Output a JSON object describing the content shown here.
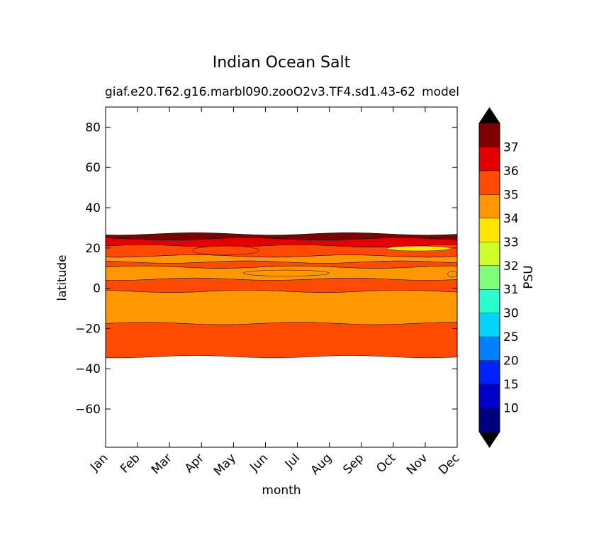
{
  "chart_data": {
    "type": "heatmap",
    "title": "Indian Ocean Salt",
    "subtitle_left": "giaf.e20.T62.g16.marbl090.zooO2v3.TF4.sd1.43-62",
    "subtitle_right": "model",
    "xlabel": "month",
    "ylabel": "latitude",
    "x_categories": [
      "Jan",
      "Feb",
      "Mar",
      "Apr",
      "May",
      "Jun",
      "Jul",
      "Aug",
      "Sep",
      "Oct",
      "Nov",
      "Dec"
    ],
    "ylim": [
      -79,
      90
    ],
    "y_ticks": [
      80,
      60,
      40,
      20,
      0,
      -20,
      -40,
      -60
    ],
    "colorbar": {
      "label": "PSU",
      "extend": "both",
      "levels": [
        10,
        15,
        20,
        25,
        30,
        31,
        32,
        33,
        34,
        35,
        36,
        37
      ],
      "colors": [
        "#00007f",
        "#0000cd",
        "#0022ff",
        "#0080ff",
        "#00d4ff",
        "#29ffce",
        "#7dff7a",
        "#ceff29",
        "#ffe600",
        "#ff9800",
        "#ff4a00",
        "#e50000",
        "#7f0000"
      ],
      "under_color": "#000000",
      "over_color": "#000000"
    },
    "bands": [
      {
        "y0": -34,
        "y1": -17.5,
        "salinity": 35.3
      },
      {
        "y0": -17.5,
        "y1": -1.5,
        "salinity": 34.6
      },
      {
        "y0": -1.5,
        "y1": 4.5,
        "salinity": 35.2
      },
      {
        "y0": 4.5,
        "y1": 10.5,
        "salinity": 34.6
      },
      {
        "y0": 10.5,
        "y1": 13,
        "salinity": 35.2
      },
      {
        "y0": 13,
        "y1": 16,
        "salinity": 34.7
      },
      {
        "y0": 16,
        "y1": 21,
        "salinity": 35.3
      },
      {
        "y0": 21,
        "y1": 24.5,
        "salinity": 36.4
      },
      {
        "y0": 24.5,
        "y1": 27,
        "salinity": 37.5
      }
    ],
    "patches": [
      {
        "x0": 8.8,
        "x1": 10.8,
        "y0": 18.5,
        "y1": 21,
        "salinity": 33.5
      },
      {
        "x0": 10.7,
        "x1": 11.0,
        "y0": 5.5,
        "y1": 8.5,
        "salinity": 34.6
      },
      {
        "x0": 2.7,
        "x1": 4.8,
        "y0": 16.5,
        "y1": 21,
        "salinity": 35.3
      },
      {
        "x0": 4.3,
        "x1": 7.0,
        "y0": 6,
        "y1": 9,
        "salinity": 34.6
      }
    ]
  }
}
